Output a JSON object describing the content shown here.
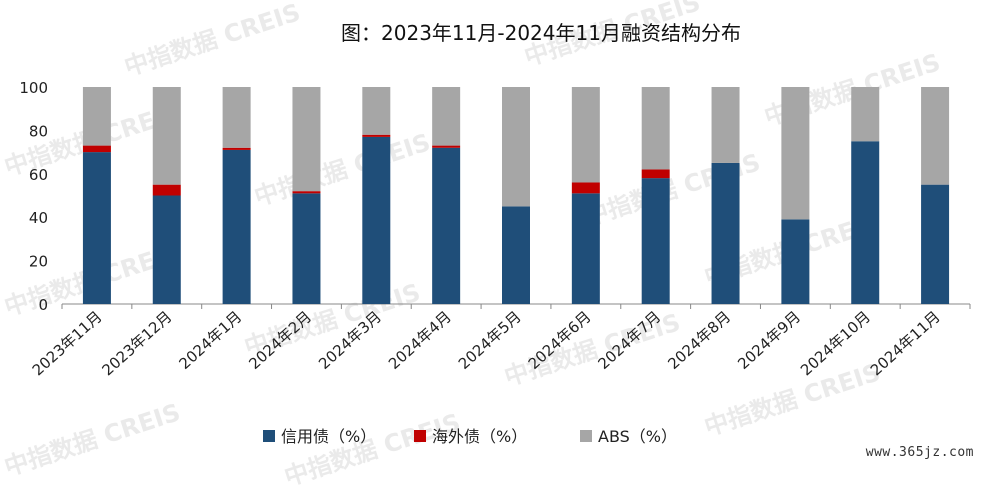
{
  "watermark": "中指数据 CREIS",
  "site_url": "www.365jz.com",
  "chart_data": {
    "type": "bar",
    "stacked": true,
    "title": "图：2023年11月-2024年11月融资结构分布",
    "xlabel": "",
    "ylabel": "",
    "ylim": [
      0,
      100
    ],
    "yticks": [
      0,
      20,
      40,
      60,
      80,
      100
    ],
    "grid": false,
    "legend_position": "bottom",
    "categories": [
      "2023年11月",
      "2023年12月",
      "2024年1月",
      "2024年2月",
      "2024年3月",
      "2024年4月",
      "2024年5月",
      "2024年6月",
      "2024年7月",
      "2024年8月",
      "2024年9月",
      "2024年10月",
      "2024年11月"
    ],
    "series": [
      {
        "name": "信用债（%）",
        "color": "#1f4e79",
        "values": [
          70,
          50,
          71,
          51,
          77,
          72,
          45,
          51,
          58,
          65,
          39,
          75,
          55
        ]
      },
      {
        "name": "海外债（%）",
        "color": "#c00000",
        "values": [
          3,
          5,
          1,
          1,
          1,
          1,
          0,
          5,
          4,
          0,
          0,
          0,
          0
        ]
      },
      {
        "name": "ABS（%）",
        "color": "#a6a6a6",
        "values": [
          27,
          45,
          28,
          48,
          22,
          27,
          55,
          44,
          38,
          35,
          61,
          25,
          45
        ]
      }
    ]
  }
}
